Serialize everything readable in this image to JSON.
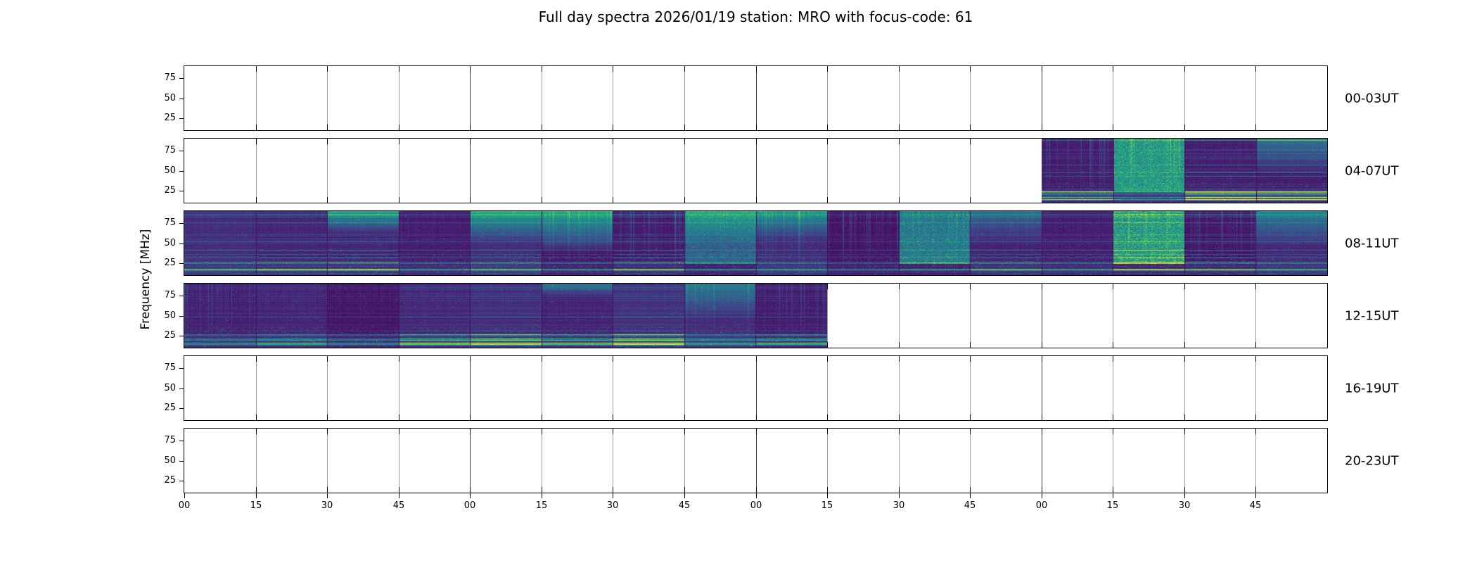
{
  "chart_data": {
    "type": "heatmap",
    "title": "Full day spectra 2026/01/19 station: MRO with focus-code: 61",
    "ylabel": "Frequency [MHz]",
    "xlabel": "",
    "colormap": "viridis",
    "ylim": [
      10,
      90
    ],
    "ytick_values": [
      75,
      50,
      25
    ],
    "xtick_labels": [
      "00",
      "15",
      "30",
      "45",
      "00",
      "15",
      "30",
      "45",
      "00",
      "15",
      "30",
      "45",
      "00",
      "15",
      "30",
      "45"
    ],
    "segments_per_row": 16,
    "minutes_per_tick": 15,
    "rows": [
      {
        "label": "00-03UT",
        "has_data": false,
        "coverage": []
      },
      {
        "label": "04-07UT",
        "has_data": true,
        "coverage": [
          {
            "start_frac": 0.75,
            "end_frac": 1.0
          }
        ]
      },
      {
        "label": "08-11UT",
        "has_data": true,
        "coverage": [
          {
            "start_frac": 0.0,
            "end_frac": 1.0
          }
        ]
      },
      {
        "label": "12-15UT",
        "has_data": true,
        "coverage": [
          {
            "start_frac": 0.0,
            "end_frac": 0.5625
          }
        ]
      },
      {
        "label": "16-19UT",
        "has_data": false,
        "coverage": []
      },
      {
        "label": "20-23UT",
        "has_data": false,
        "coverage": []
      }
    ]
  }
}
